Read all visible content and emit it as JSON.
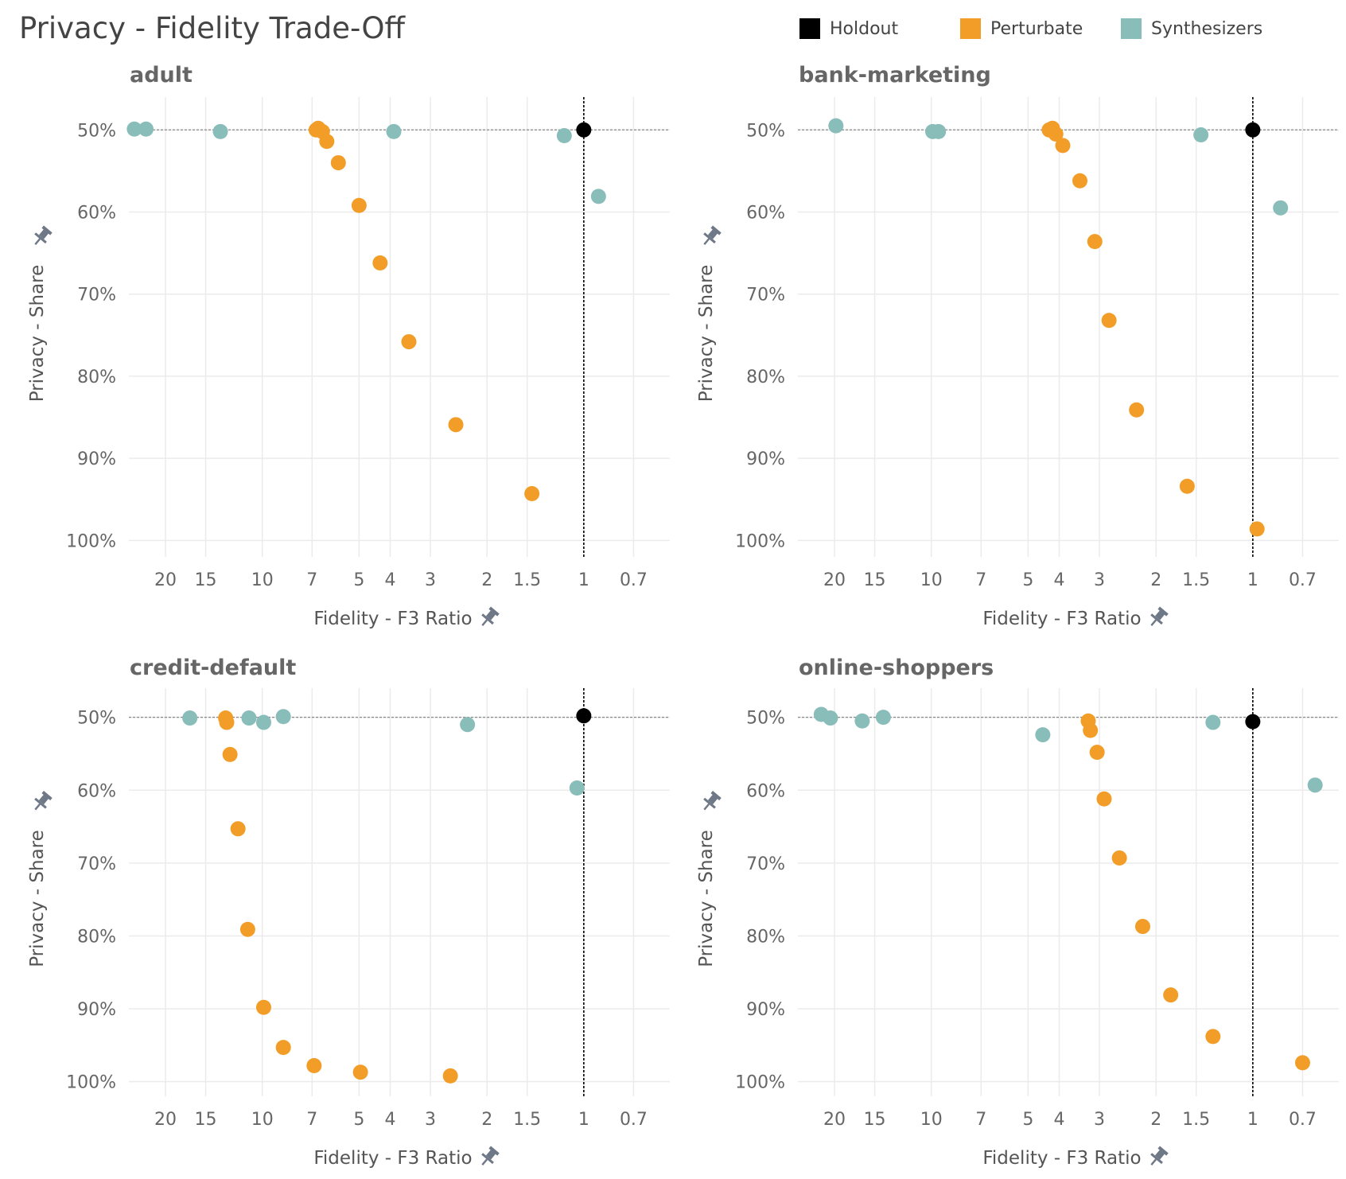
{
  "title": "Privacy - Fidelity Trade-Off",
  "legend": [
    {
      "label": "Holdout",
      "color": "#000000"
    },
    {
      "label": "Perturbate",
      "color": "#F29D27"
    },
    {
      "label": "Synthesizers",
      "color": "#88BDB9"
    }
  ],
  "colors": {
    "holdout": "#000000",
    "perturbate": "#F29D27",
    "synthesizers": "#88BDB9",
    "pin": "#6F7887",
    "grid": "#EBEBEB",
    "axis_text": "#666666"
  },
  "icons": {
    "pin": "pin-icon"
  },
  "chart_data": [
    {
      "type": "scatter",
      "title": "adult",
      "xlabel": "Fidelity - F3 Ratio",
      "ylabel": "Privacy - Share",
      "x_scale": "log-reversed",
      "xlim": [
        26,
        0.54
      ],
      "ylim": [
        46,
        102
      ],
      "x_ticks": [
        20,
        15,
        10,
        7,
        5,
        4,
        3,
        2,
        1.5,
        1,
        0.7
      ],
      "y_ticks": [
        50,
        60,
        70,
        80,
        90,
        100
      ],
      "y_tick_labels": [
        "50%",
        "60%",
        "70%",
        "80%",
        "90%",
        "100%"
      ],
      "reference_x": 1,
      "reference_y": 50,
      "series": [
        {
          "name": "Holdout",
          "x": [
            1.0
          ],
          "y": [
            50.0
          ]
        },
        {
          "name": "Perturbate",
          "x": [
            6.8,
            6.7,
            6.5,
            6.3,
            5.8,
            5.0,
            4.3,
            3.5,
            2.5,
            1.45
          ],
          "y": [
            50.0,
            49.8,
            50.2,
            51.4,
            54.0,
            59.2,
            66.2,
            75.8,
            85.9,
            94.3
          ]
        },
        {
          "name": "Synthesizers",
          "x": [
            25,
            23,
            13.5,
            3.9,
            1.15,
            0.9
          ],
          "y": [
            49.9,
            49.9,
            50.2,
            50.2,
            50.7,
            58.1
          ]
        }
      ]
    },
    {
      "type": "scatter",
      "title": "bank-marketing",
      "xlabel": "Fidelity - F3 Ratio",
      "ylabel": "Privacy - Share",
      "x_scale": "log-reversed",
      "xlim": [
        26,
        0.54
      ],
      "ylim": [
        46,
        102
      ],
      "x_ticks": [
        20,
        15,
        10,
        7,
        5,
        4,
        3,
        2,
        1.5,
        1,
        0.7
      ],
      "y_ticks": [
        50,
        60,
        70,
        80,
        90,
        100
      ],
      "y_tick_labels": [
        "50%",
        "60%",
        "70%",
        "80%",
        "90%",
        "100%"
      ],
      "reference_x": 1,
      "reference_y": 50,
      "series": [
        {
          "name": "Holdout",
          "x": [
            1.0
          ],
          "y": [
            50.0
          ]
        },
        {
          "name": "Perturbate",
          "x": [
            4.3,
            4.2,
            4.1,
            3.9,
            3.45,
            3.1,
            2.8,
            2.3,
            1.6,
            0.97
          ],
          "y": [
            50.0,
            49.8,
            50.5,
            51.9,
            56.2,
            63.6,
            73.2,
            84.1,
            93.4,
            98.6
          ]
        },
        {
          "name": "Synthesizers",
          "x": [
            19.8,
            9.9,
            9.5,
            1.45,
            0.82
          ],
          "y": [
            49.5,
            50.2,
            50.2,
            50.6,
            59.5
          ]
        }
      ]
    },
    {
      "type": "scatter",
      "title": "credit-default",
      "xlabel": "Fidelity - F3 Ratio",
      "ylabel": "Privacy - Share",
      "x_scale": "log-reversed",
      "xlim": [
        26,
        0.54
      ],
      "ylim": [
        46,
        102
      ],
      "x_ticks": [
        20,
        15,
        10,
        7,
        5,
        4,
        3,
        2,
        1.5,
        1,
        0.7
      ],
      "y_ticks": [
        50,
        60,
        70,
        80,
        90,
        100
      ],
      "y_tick_labels": [
        "50%",
        "60%",
        "70%",
        "80%",
        "90%",
        "100%"
      ],
      "reference_x": 1,
      "reference_y": 50,
      "series": [
        {
          "name": "Holdout",
          "x": [
            1.0
          ],
          "y": [
            49.8
          ]
        },
        {
          "name": "Perturbate",
          "x": [
            13.0,
            12.9,
            12.6,
            11.9,
            11.1,
            9.9,
            8.6,
            6.9,
            4.95,
            2.6
          ],
          "y": [
            50.1,
            50.7,
            55.1,
            65.3,
            79.1,
            89.8,
            95.3,
            97.8,
            98.7,
            99.2
          ]
        },
        {
          "name": "Synthesizers",
          "x": [
            16.8,
            11.0,
            9.9,
            8.6,
            2.3,
            1.05
          ],
          "y": [
            50.1,
            50.1,
            50.7,
            49.9,
            51.0,
            59.7
          ]
        }
      ]
    },
    {
      "type": "scatter",
      "title": "online-shoppers",
      "xlabel": "Fidelity - F3 Ratio",
      "ylabel": "Privacy - Share",
      "x_scale": "log-reversed",
      "xlim": [
        26,
        0.54
      ],
      "ylim": [
        46,
        102
      ],
      "x_ticks": [
        20,
        15,
        10,
        7,
        5,
        4,
        3,
        2,
        1.5,
        1,
        0.7
      ],
      "y_ticks": [
        50,
        60,
        70,
        80,
        90,
        100
      ],
      "y_tick_labels": [
        "50%",
        "60%",
        "70%",
        "80%",
        "90%",
        "100%"
      ],
      "reference_x": 1,
      "reference_y": 50,
      "series": [
        {
          "name": "Holdout",
          "x": [
            1.0
          ],
          "y": [
            50.6
          ]
        },
        {
          "name": "Perturbate",
          "x": [
            3.25,
            3.2,
            3.05,
            2.9,
            2.6,
            2.2,
            1.8,
            1.33,
            0.7
          ],
          "y": [
            50.5,
            51.8,
            54.8,
            61.2,
            69.3,
            78.7,
            88.1,
            93.8,
            97.4
          ]
        },
        {
          "name": "Synthesizers",
          "x": [
            22,
            20.6,
            16.4,
            14.1,
            4.5,
            1.33,
            0.64
          ],
          "y": [
            49.6,
            50.1,
            50.5,
            50.0,
            52.4,
            50.7,
            59.3
          ]
        }
      ]
    }
  ]
}
